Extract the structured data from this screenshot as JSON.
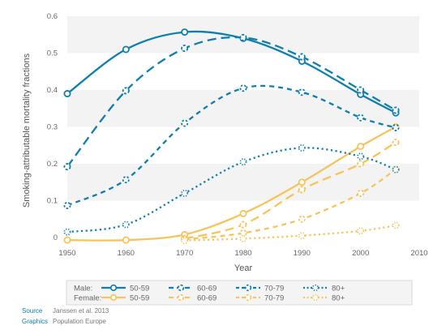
{
  "chart_data": {
    "type": "line",
    "title": "",
    "xlabel": "Year",
    "ylabel": "Smoking-attributable mortality fractions",
    "xlim": [
      1950,
      2010
    ],
    "ylim": [
      0,
      0.6
    ],
    "xticks": [
      "1950",
      "1960",
      "1970",
      "1980",
      "1990",
      "2000",
      "2010"
    ],
    "yticks": [
      "0",
      "0.1",
      "0.2",
      "0.3",
      "0.4",
      "0.5",
      "0.6"
    ],
    "x": [
      1950,
      1960,
      1970,
      1980,
      1990,
      2000,
      2006
    ],
    "grid": "alternating horizontal bands",
    "legend_placement": "bottom",
    "legend_groups": [
      "Male:",
      "Female:"
    ],
    "colors": {
      "male": "#0e7fae",
      "female": "#f7c45a"
    },
    "series": [
      {
        "name": "50-59",
        "group": "Male",
        "style": "solid",
        "values": [
          0.39,
          0.51,
          0.557,
          0.54,
          0.478,
          0.388,
          0.338
        ]
      },
      {
        "name": "60-69",
        "group": "Male",
        "style": "longdash",
        "values": [
          0.192,
          0.398,
          0.513,
          0.542,
          0.49,
          0.4,
          0.345
        ]
      },
      {
        "name": "70-79",
        "group": "Male",
        "style": "dash",
        "values": [
          0.087,
          0.157,
          0.31,
          0.405,
          0.394,
          0.325,
          0.298
        ]
      },
      {
        "name": "80+",
        "group": "Male",
        "style": "dot",
        "values": [
          0.015,
          0.035,
          0.12,
          0.205,
          0.243,
          0.22,
          0.184
        ]
      },
      {
        "name": "50-59",
        "group": "Female",
        "style": "solid",
        "values": [
          -0.007,
          -0.007,
          0.008,
          0.065,
          0.15,
          0.247,
          0.3
        ]
      },
      {
        "name": "60-69",
        "group": "Female",
        "style": "longdash",
        "values": [
          null,
          null,
          -0.003,
          0.035,
          0.13,
          0.2,
          0.258
        ]
      },
      {
        "name": "70-79",
        "group": "Female",
        "style": "dash",
        "values": [
          null,
          null,
          -0.005,
          0.012,
          0.05,
          0.12,
          0.185
        ]
      },
      {
        "name": "80+",
        "group": "Female",
        "style": "dot",
        "values": [
          null,
          null,
          -0.008,
          -0.003,
          0.005,
          0.018,
          0.033
        ]
      }
    ]
  },
  "credits": [
    {
      "key": "Source",
      "value": "Janssen et al. 2013"
    },
    {
      "key": "Graphics",
      "value": "Population Europe"
    }
  ]
}
